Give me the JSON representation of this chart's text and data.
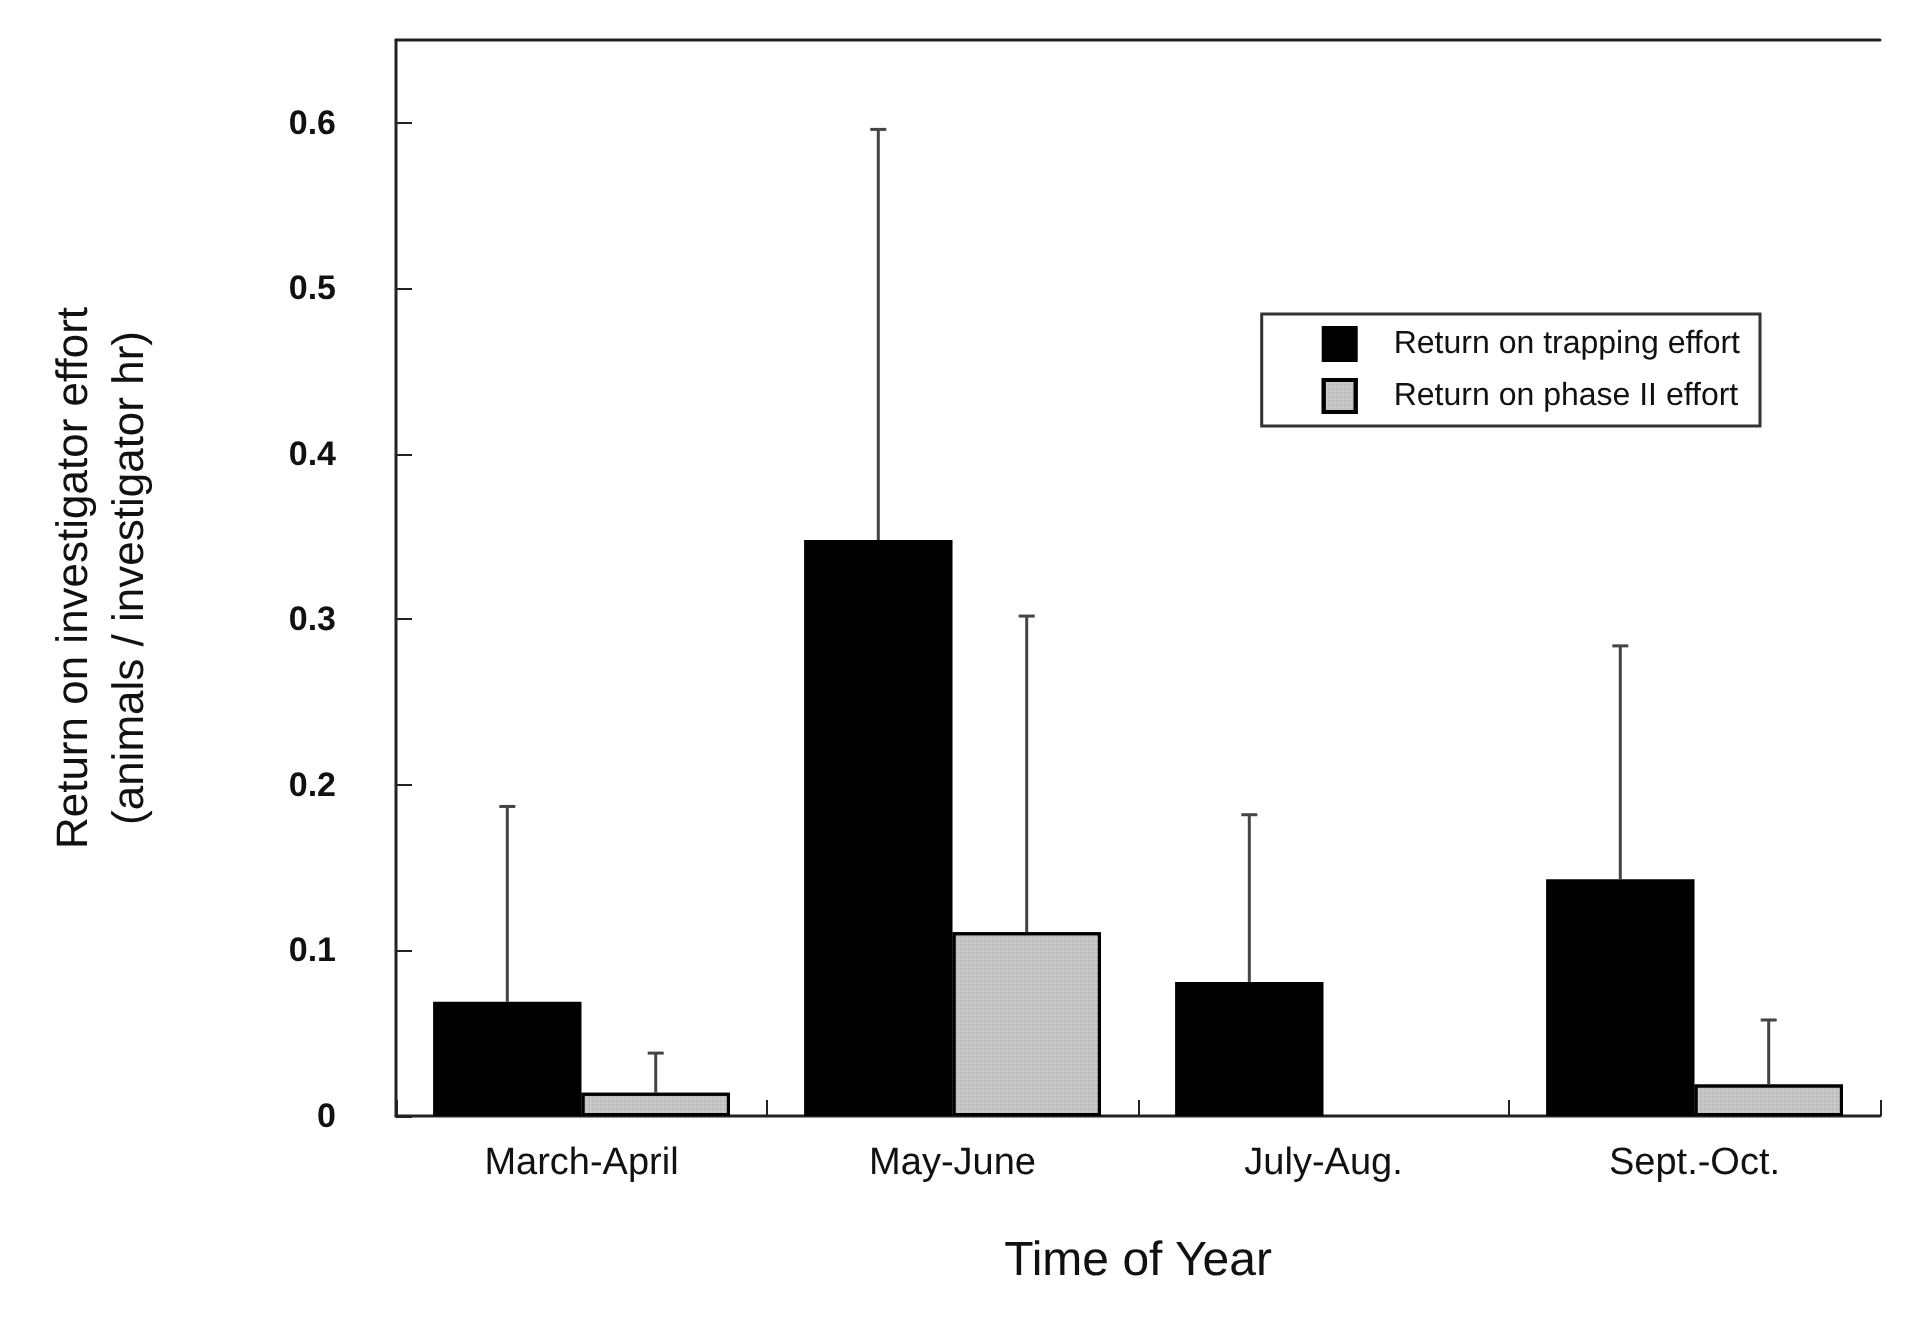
{
  "chart_data": {
    "type": "bar",
    "xlabel": "Time of Year",
    "ylabel": "Return on investigator effort\n(animals / investigator hr)",
    "categories": [
      "March-April",
      "May-June",
      "July-Aug.",
      "Sept.-Oct."
    ],
    "series": [
      {
        "name": "Return on trapping effort",
        "color": "#000000",
        "values": [
          0.069,
          0.348,
          0.081,
          0.143
        ],
        "errors": [
          [
            0.069,
            0.187
          ],
          [
            0.348,
            0.596
          ],
          [
            0.081,
            0.182
          ],
          [
            0.143,
            0.284
          ]
        ]
      },
      {
        "name": "Return on phase II effort",
        "color": "#c8c8c8",
        "values": [
          0.014,
          0.111,
          null,
          0.019
        ],
        "errors": [
          [
            0.014,
            0.038
          ],
          [
            0.111,
            0.302
          ],
          null,
          [
            0.019,
            0.058
          ]
        ]
      }
    ],
    "ylim": [
      0,
      0.65
    ],
    "yticks": [
      0,
      0.1,
      0.2,
      0.3,
      0.4,
      0.5,
      0.6
    ],
    "grid": false,
    "legend": "top right"
  }
}
